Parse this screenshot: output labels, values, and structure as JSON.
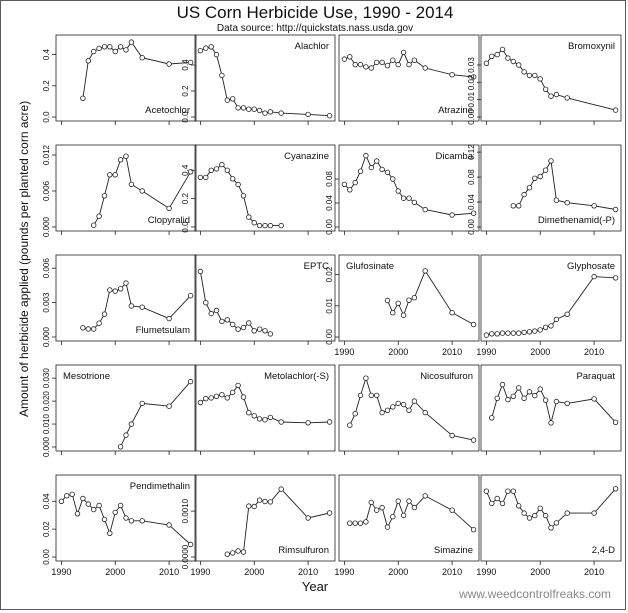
{
  "title": "US Corn Herbicide Use, 1990 - 2014",
  "subtitle": "Data source: http://quickstats.nass.usda.gov",
  "ylabel": "Amount of herbicide applied (pounds per planted corn acre)",
  "xlabel": "Year",
  "credit": "www.weedcontrolfreaks.com",
  "chart_data": [
    {
      "type": "line",
      "title": "Acetochlor",
      "legend_position": "bottom-right",
      "xlim": [
        1989,
        2015
      ],
      "ylim": [
        0,
        0.5
      ],
      "x_ticks": [
        1990,
        2000,
        2010
      ],
      "y_ticks": [
        "0.0",
        "0.2",
        "0.4"
      ],
      "y_tick_values": [
        0,
        0.2,
        0.4
      ],
      "x": [
        1994,
        1995,
        1996,
        1997,
        1998,
        1999,
        2000,
        2001,
        2002,
        2003,
        2005,
        2010,
        2014
      ],
      "values": [
        0.12,
        0.36,
        0.42,
        0.44,
        0.45,
        0.45,
        0.42,
        0.45,
        0.43,
        0.48,
        0.38,
        0.34,
        0.35
      ]
    },
    {
      "type": "line",
      "title": "Alachlor",
      "legend_position": "top-right",
      "xlim": [
        1989,
        2015
      ],
      "ylim": [
        0,
        0.6
      ],
      "x_ticks": [
        1990,
        2000,
        2010
      ],
      "y_ticks": [
        "0.0",
        "0.2",
        "0.4"
      ],
      "y_tick_values": [
        0,
        0.2,
        0.4
      ],
      "x": [
        1990,
        1991,
        1992,
        1993,
        1994,
        1995,
        1996,
        1997,
        1998,
        1999,
        2000,
        2001,
        2002,
        2003,
        2005,
        2010,
        2014
      ],
      "values": [
        0.51,
        0.53,
        0.54,
        0.48,
        0.32,
        0.13,
        0.14,
        0.07,
        0.07,
        0.06,
        0.06,
        0.05,
        0.03,
        0.04,
        0.03,
        0.02,
        0.01
      ]
    },
    {
      "type": "line",
      "title": "Atrazine",
      "legend_position": "bottom-right",
      "xlim": [
        1989,
        2015
      ],
      "ylim": [
        0.5,
        1.2
      ],
      "x_ticks": [
        1990,
        2000,
        2010
      ],
      "y_ticks": [],
      "y_tick_values": [],
      "x": [
        1990,
        1991,
        1992,
        1993,
        1994,
        1995,
        1996,
        1997,
        1998,
        1999,
        2000,
        2001,
        2002,
        2003,
        2005,
        2010,
        2014
      ],
      "values": [
        1.02,
        1.04,
        0.97,
        0.97,
        0.95,
        0.94,
        0.99,
        0.99,
        0.96,
        1.01,
        0.97,
        1.08,
        0.97,
        1.01,
        0.94,
        0.88,
        0.86
      ]
    },
    {
      "type": "line",
      "title": "Bromoxynil",
      "legend_position": "top-right",
      "xlim": [
        1989,
        2015
      ],
      "ylim": [
        0,
        0.045
      ],
      "x_ticks": [
        1990,
        2000,
        2010
      ],
      "y_ticks": [
        "0.00",
        "0.01",
        "0.02",
        "0.03"
      ],
      "y_tick_values": [
        0,
        0.01,
        0.02,
        0.03
      ],
      "x": [
        1990,
        1991,
        1992,
        1993,
        1994,
        1995,
        1996,
        1997,
        1998,
        1999,
        2000,
        2001,
        2002,
        2003,
        2005,
        2014
      ],
      "values": [
        0.031,
        0.035,
        0.036,
        0.039,
        0.034,
        0.032,
        0.03,
        0.026,
        0.024,
        0.024,
        0.022,
        0.016,
        0.012,
        0.013,
        0.011,
        0.004
      ]
    },
    {
      "type": "line",
      "title": "Clopyralid",
      "legend_position": "bottom-right",
      "xlim": [
        1989,
        2015
      ],
      "ylim": [
        0,
        0.013
      ],
      "x_ticks": [
        1990,
        2000,
        2010
      ],
      "y_ticks": [
        "0.000",
        "0.006",
        "0.012"
      ],
      "y_tick_values": [
        0,
        0.006,
        0.012
      ],
      "x": [
        1996,
        1997,
        1998,
        1999,
        2000,
        2001,
        2002,
        2003,
        2005,
        2010,
        2014
      ],
      "values": [
        0.0003,
        0.0018,
        0.0052,
        0.0087,
        0.0087,
        0.0112,
        0.0118,
        0.0071,
        0.006,
        0.0031,
        0.0092
      ]
    },
    {
      "type": "line",
      "title": "Cyanazine",
      "legend_position": "top-right",
      "xlim": [
        1989,
        2015
      ],
      "ylim": [
        0,
        0.55
      ],
      "x_ticks": [
        1990,
        2000,
        2010
      ],
      "y_ticks": [
        "0.0",
        "0.2",
        "0.4"
      ],
      "y_tick_values": [
        0,
        0.2,
        0.4
      ],
      "x": [
        1990,
        1991,
        1992,
        1993,
        1994,
        1995,
        1996,
        1997,
        1998,
        1999,
        2000,
        2001,
        2002,
        2003,
        2005
      ],
      "values": [
        0.35,
        0.35,
        0.4,
        0.41,
        0.44,
        0.4,
        0.34,
        0.3,
        0.22,
        0.07,
        0.03,
        0.01,
        0.01,
        0.01,
        0.01
      ]
    },
    {
      "type": "line",
      "title": "Dicamba",
      "legend_position": "top-right",
      "xlim": [
        1989,
        2015
      ],
      "ylim": [
        0,
        0.13
      ],
      "x_ticks": [
        1990,
        2000,
        2010
      ],
      "y_ticks": [
        "0.00",
        "0.04",
        "0.08"
      ],
      "y_tick_values": [
        0,
        0.04,
        0.08
      ],
      "x": [
        1990,
        1991,
        1992,
        1993,
        1994,
        1995,
        1996,
        1997,
        1998,
        1999,
        2000,
        2001,
        2002,
        2003,
        2005,
        2010,
        2014
      ],
      "values": [
        0.071,
        0.062,
        0.074,
        0.093,
        0.119,
        0.099,
        0.11,
        0.096,
        0.091,
        0.08,
        0.06,
        0.048,
        0.048,
        0.041,
        0.029,
        0.02,
        0.023
      ]
    },
    {
      "type": "line",
      "title": "Dimethenamid(-P)",
      "legend_position": "bottom-right",
      "xlim": [
        1989,
        2015
      ],
      "ylim": [
        0,
        0.125
      ],
      "x_ticks": [
        1990,
        2000,
        2010
      ],
      "y_ticks": [
        "0.00",
        "0.04",
        "0.08",
        "0.12"
      ],
      "y_tick_values": [
        0,
        0.04,
        0.08,
        0.12
      ],
      "x": [
        1995,
        1996,
        1997,
        1998,
        1999,
        2000,
        2001,
        2002,
        2003,
        2005,
        2010,
        2014
      ],
      "values": [
        0.034,
        0.034,
        0.052,
        0.063,
        0.078,
        0.081,
        0.091,
        0.106,
        0.043,
        0.039,
        0.034,
        0.028
      ]
    },
    {
      "type": "line",
      "title": "Flumetsulam",
      "legend_position": "bottom-right",
      "xlim": [
        1989,
        2015
      ],
      "ylim": [
        0,
        0.0068
      ],
      "x_ticks": [
        1990,
        2000,
        2010
      ],
      "y_ticks": [
        "0.000",
        "0.003",
        "0.006"
      ],
      "y_tick_values": [
        0,
        0.003,
        0.006
      ],
      "x": [
        1994,
        1995,
        1996,
        1997,
        1998,
        1999,
        2000,
        2001,
        2002,
        2003,
        2005,
        2010,
        2014
      ],
      "values": [
        0.0008,
        0.0007,
        0.0007,
        0.0012,
        0.002,
        0.0041,
        0.004,
        0.0042,
        0.0047,
        0.0027,
        0.0026,
        0.0016,
        0.0036
      ]
    },
    {
      "type": "line",
      "title": "EPTC",
      "legend_position": "top-right",
      "xlim": [
        1989,
        2015
      ],
      "ylim": [
        0,
        0.5
      ],
      "x_ticks": [
        1990,
        2000,
        2010
      ],
      "y_ticks": [],
      "y_tick_values": [],
      "x": [
        1990,
        1991,
        1992,
        1993,
        1994,
        1995,
        1996,
        1997,
        1998,
        1999,
        2000,
        2001,
        2002,
        2003
      ],
      "values": [
        0.42,
        0.22,
        0.15,
        0.17,
        0.1,
        0.11,
        0.08,
        0.05,
        0.06,
        0.09,
        0.04,
        0.05,
        0.04,
        0.02
      ]
    },
    {
      "type": "line",
      "title": "Glufosinate",
      "legend_position": "top-left",
      "xlim": [
        1989,
        2015
      ],
      "ylim": [
        0,
        0.025
      ],
      "x_ticks": [
        1990,
        2000,
        2010
      ],
      "y_ticks": [
        "0.00",
        "0.01",
        "0.02"
      ],
      "y_tick_values": [
        0,
        0.01,
        0.02
      ],
      "x": [
        1998,
        1999,
        2000,
        2001,
        2002,
        2003,
        2005,
        2010,
        2014
      ],
      "values": [
        0.0117,
        0.0078,
        0.0108,
        0.007,
        0.0118,
        0.0126,
        0.0212,
        0.0078,
        0.004
      ]
    },
    {
      "type": "line",
      "title": "Glyphosate",
      "legend_position": "top-right",
      "xlim": [
        1989,
        2015
      ],
      "ylim": [
        0,
        1.2
      ],
      "x_ticks": [
        1990,
        2000,
        2010
      ],
      "y_ticks": [],
      "y_tick_values": [],
      "x": [
        1990,
        1991,
        1992,
        1993,
        1994,
        1995,
        1996,
        1997,
        1998,
        1999,
        2000,
        2001,
        2002,
        2003,
        2005,
        2010,
        2014
      ],
      "values": [
        0.03,
        0.05,
        0.05,
        0.06,
        0.06,
        0.06,
        0.06,
        0.07,
        0.08,
        0.09,
        0.11,
        0.15,
        0.17,
        0.27,
        0.35,
        0.93,
        0.91
      ]
    },
    {
      "type": "line",
      "title": "Mesotrione",
      "legend_position": "top-left",
      "xlim": [
        1989,
        2015
      ],
      "ylim": [
        0,
        0.034
      ],
      "x_ticks": [
        1990,
        2000,
        2010
      ],
      "y_ticks": [
        "0.000",
        "0.010",
        "0.020",
        "0.030"
      ],
      "y_tick_values": [
        0,
        0.01,
        0.02,
        0.03
      ],
      "x": [
        2001,
        2002,
        2003,
        2005,
        2010,
        2014
      ],
      "values": [
        0.0001,
        0.0052,
        0.01,
        0.019,
        0.0178,
        0.0285
      ]
    },
    {
      "type": "line",
      "title": "Metolachlor(-S)",
      "legend_position": "top-right",
      "xlim": [
        1989,
        2015
      ],
      "ylim": [
        0,
        1.0
      ],
      "x_ticks": [
        1990,
        2000,
        2010
      ],
      "y_ticks": [],
      "y_tick_values": [],
      "x": [
        1990,
        1991,
        1992,
        1993,
        1994,
        1995,
        1996,
        1997,
        1998,
        1999,
        2000,
        2001,
        2002,
        2003,
        2005,
        2010,
        2014
      ],
      "values": [
        0.57,
        0.62,
        0.63,
        0.65,
        0.67,
        0.63,
        0.7,
        0.79,
        0.64,
        0.44,
        0.4,
        0.36,
        0.35,
        0.38,
        0.32,
        0.31,
        0.32
      ]
    },
    {
      "type": "line",
      "title": "Nicosulfuron",
      "legend_position": "top-right",
      "xlim": [
        1989,
        2015
      ],
      "ylim": [
        0,
        0.0068
      ],
      "x_ticks": [
        1990,
        2000,
        2010
      ],
      "y_ticks": [],
      "y_tick_values": [],
      "x": [
        1991,
        1992,
        1993,
        1994,
        1995,
        1996,
        1997,
        1998,
        1999,
        2000,
        2001,
        2002,
        2003,
        2005,
        2010,
        2014
      ],
      "values": [
        0.0019,
        0.0029,
        0.0045,
        0.006,
        0.0045,
        0.0045,
        0.003,
        0.0032,
        0.0035,
        0.0038,
        0.0037,
        0.0032,
        0.004,
        0.003,
        0.001,
        0.0006
      ]
    },
    {
      "type": "line",
      "title": "Paraquat",
      "legend_position": "top-right",
      "xlim": [
        1989,
        2015
      ],
      "ylim": [
        0,
        0.12
      ],
      "x_ticks": [
        1990,
        2000,
        2010
      ],
      "y_ticks": [],
      "y_tick_values": [],
      "x": [
        1991,
        1992,
        1993,
        1994,
        1995,
        1996,
        1997,
        1998,
        1999,
        2000,
        2001,
        2002,
        2003,
        2005,
        2010,
        2014
      ],
      "values": [
        0.045,
        0.075,
        0.096,
        0.073,
        0.078,
        0.091,
        0.075,
        0.085,
        0.079,
        0.089,
        0.072,
        0.037,
        0.07,
        0.067,
        0.074,
        0.038
      ]
    },
    {
      "type": "line",
      "title": "Pendimethalin",
      "legend_position": "top-right",
      "xlim": [
        1989,
        2015
      ],
      "ylim": [
        0,
        0.056
      ],
      "x_ticks": [
        1990,
        2000,
        2010
      ],
      "y_ticks": [
        "0.00",
        "0.02",
        "0.04"
      ],
      "y_tick_values": [
        0,
        0.02,
        0.04
      ],
      "x": [
        1990,
        1991,
        1992,
        1993,
        1994,
        1995,
        1996,
        1997,
        1998,
        1999,
        2000,
        2001,
        2002,
        2003,
        2005,
        2010,
        2014
      ],
      "values": [
        0.04,
        0.044,
        0.045,
        0.031,
        0.042,
        0.038,
        0.034,
        0.037,
        0.027,
        0.017,
        0.032,
        0.037,
        0.028,
        0.026,
        0.026,
        0.023,
        0.009
      ]
    },
    {
      "type": "line",
      "title": "Rimsulfuron",
      "legend_position": "bottom-right",
      "xlim": [
        1989,
        2015
      ],
      "ylim": [
        0,
        0.0017
      ],
      "x_ticks": [
        1990,
        2000,
        2010
      ],
      "y_ticks": [
        "0.0000",
        "0.0010"
      ],
      "y_tick_values": [
        0,
        0.001
      ],
      "x": [
        1995,
        1996,
        1997,
        1998,
        1999,
        2000,
        2001,
        2002,
        2003,
        2005,
        2010,
        2014
      ],
      "values": [
        6e-05,
        9e-05,
        0.00013,
        0.00011,
        0.00111,
        0.0011,
        0.00124,
        0.00121,
        0.0012,
        0.00148,
        0.00085,
        0.00096
      ]
    },
    {
      "type": "line",
      "title": "Simazine",
      "legend_position": "bottom-right",
      "xlim": [
        1989,
        2015
      ],
      "ylim": [
        0,
        0.06
      ],
      "x_ticks": [
        1990,
        2000,
        2010
      ],
      "y_ticks": [],
      "y_tick_values": [],
      "x": [
        1991,
        1992,
        1993,
        1994,
        1995,
        1996,
        1997,
        1998,
        1999,
        2000,
        2001,
        2002,
        2003,
        2005,
        2010,
        2014
      ],
      "values": [
        0.026,
        0.026,
        0.026,
        0.027,
        0.042,
        0.036,
        0.038,
        0.023,
        0.031,
        0.043,
        0.032,
        0.043,
        0.038,
        0.047,
        0.036,
        0.021
      ]
    },
    {
      "type": "line",
      "title": "2,4-D",
      "legend_position": "bottom-right",
      "xlim": [
        1989,
        2015
      ],
      "ylim": [
        0,
        0.32
      ],
      "x_ticks": [
        1990,
        2000,
        2010
      ],
      "y_ticks": [],
      "y_tick_values": [],
      "x": [
        1990,
        1991,
        1992,
        1993,
        1994,
        1995,
        1996,
        1997,
        1998,
        1999,
        2000,
        2001,
        2002,
        2003,
        2005,
        2010,
        2014
      ],
      "values": [
        0.27,
        0.22,
        0.24,
        0.22,
        0.27,
        0.27,
        0.21,
        0.18,
        0.16,
        0.17,
        0.2,
        0.17,
        0.12,
        0.14,
        0.18,
        0.18,
        0.28
      ]
    }
  ]
}
